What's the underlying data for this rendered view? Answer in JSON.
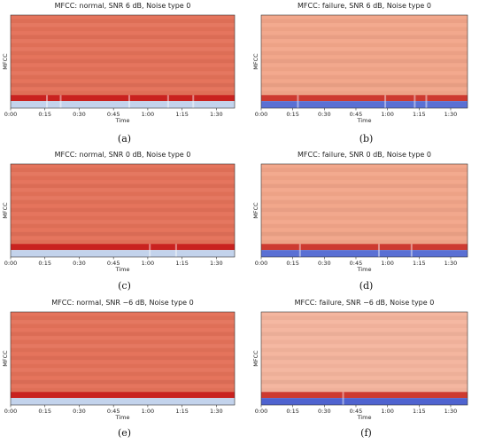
{
  "chart_data": [
    {
      "type": "heatmap",
      "title": "MFCC: normal, SNR 6 dB, Noise type 0",
      "ylabel": "MFCC",
      "xlabel": "Time",
      "x_ticks": [
        "0:00",
        "0:15",
        "0:30",
        "0:45",
        "1:00",
        "1:15",
        "1:30"
      ],
      "x_tick_seconds": [
        0,
        15,
        30,
        45,
        60,
        75,
        90
      ],
      "x_max_seconds": 98,
      "panel_label": "(a)",
      "colormap": "coolwarm",
      "colors": {
        "top": "#e47159",
        "band": "#c9221f",
        "bottom": "#c3d3ec"
      },
      "light_column_seconds": [
        15.5,
        21.5,
        51.5,
        68.5,
        79.5
      ]
    },
    {
      "type": "heatmap",
      "title": "MFCC: failure, SNR 6 dB, Noise type 0",
      "ylabel": "MFCC",
      "xlabel": "Time",
      "x_ticks": [
        "0:00",
        "0:15",
        "0:30",
        "0:45",
        "1:00",
        "1:15",
        "1:30"
      ],
      "x_tick_seconds": [
        0,
        15,
        30,
        45,
        60,
        75,
        90
      ],
      "x_max_seconds": 98,
      "panel_label": "(b)",
      "colormap": "coolwarm",
      "colors": {
        "top": "#f2a589",
        "band": "#cd3a30",
        "bottom": "#5a70d4"
      },
      "light_column_seconds": [
        17,
        58.5,
        72.5,
        78
      ]
    },
    {
      "type": "heatmap",
      "title": "MFCC: normal, SNR 0 dB, Noise type 0",
      "ylabel": "MFCC",
      "xlabel": "Time",
      "x_ticks": [
        "0:00",
        "0:15",
        "0:30",
        "0:45",
        "1:00",
        "1:15",
        "1:30"
      ],
      "x_tick_seconds": [
        0,
        15,
        30,
        45,
        60,
        75,
        90
      ],
      "x_max_seconds": 98,
      "panel_label": "(c)",
      "colormap": "coolwarm",
      "colors": {
        "top": "#e47159",
        "band": "#c9221f",
        "bottom": "#c3d3ec"
      },
      "light_column_seconds": [
        60.5,
        72
      ]
    },
    {
      "type": "heatmap",
      "title": "MFCC: failure, SNR 0 dB, Noise type 0",
      "ylabel": "MFCC",
      "xlabel": "Time",
      "x_ticks": [
        "0:00",
        "0:15",
        "0:30",
        "0:45",
        "1:00",
        "1:15",
        "1:30"
      ],
      "x_tick_seconds": [
        0,
        15,
        30,
        45,
        60,
        75,
        90
      ],
      "x_max_seconds": 98,
      "panel_label": "(d)",
      "colormap": "coolwarm",
      "colors": {
        "top": "#f2a589",
        "band": "#cd3a30",
        "bottom": "#5a70d4"
      },
      "light_column_seconds": [
        18,
        55.5,
        71
      ]
    },
    {
      "type": "heatmap",
      "title": "MFCC: normal, SNR −6 dB, Noise type 0",
      "ylabel": "MFCC",
      "xlabel": "Time",
      "x_ticks": [
        "0:00",
        "0:15",
        "0:30",
        "0:45",
        "1:00",
        "1:15",
        "1:30"
      ],
      "x_tick_seconds": [
        0,
        15,
        30,
        45,
        60,
        75,
        90
      ],
      "x_max_seconds": 98,
      "panel_label": "(e)",
      "colormap": "coolwarm",
      "colors": {
        "top": "#e47159",
        "band": "#c9221f",
        "bottom": "#c3d3ec"
      },
      "light_column_seconds": []
    },
    {
      "type": "heatmap",
      "title": "MFCC: failure, SNR −6 dB, Noise type 0",
      "ylabel": "MFCC",
      "xlabel": "Time",
      "x_ticks": [
        "0:00",
        "0:15",
        "0:30",
        "0:45",
        "1:00",
        "1:15",
        "1:30"
      ],
      "x_tick_seconds": [
        0,
        15,
        30,
        45,
        60,
        75,
        90
      ],
      "x_max_seconds": 98,
      "panel_label": "(f)",
      "colormap": "coolwarm",
      "colors": {
        "top": "#f4b49d",
        "band": "#cd3a30",
        "bottom": "#4f63cf"
      },
      "light_column_seconds": [
        38.5
      ]
    }
  ]
}
